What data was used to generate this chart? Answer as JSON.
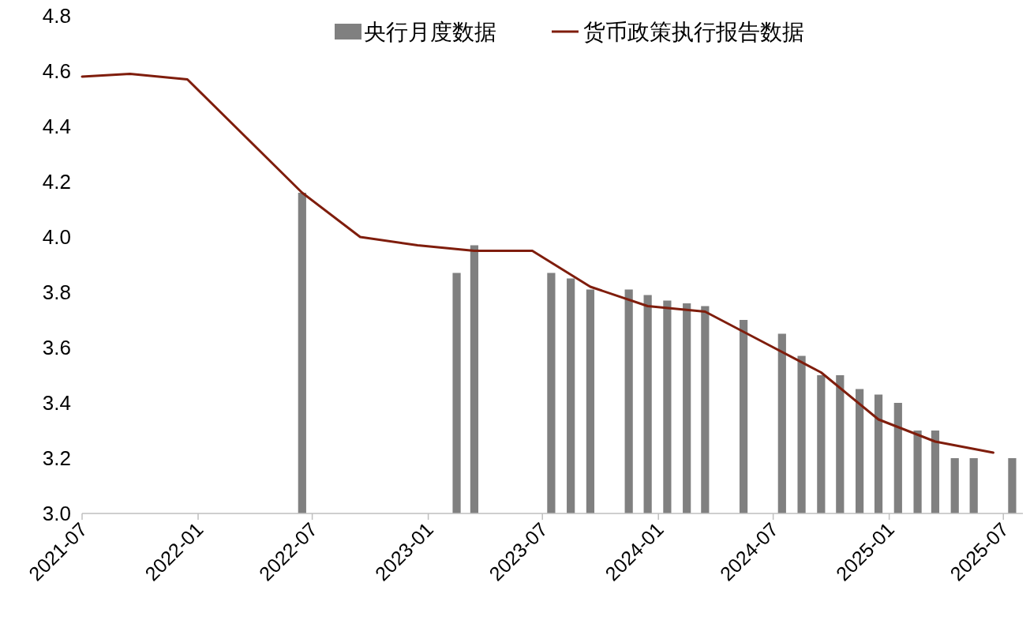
{
  "chart_data": {
    "type": "bar",
    "xlim": [
      "2021-07",
      "2025-08"
    ],
    "xticks": [
      "2021-07",
      "2022-01",
      "2022-07",
      "2023-01",
      "2023-07",
      "2024-01",
      "2024-07",
      "2025-01",
      "2025-07"
    ],
    "ylim": [
      3.0,
      4.8
    ],
    "yticks": [
      {
        "value": 3.0,
        "label": "3.0"
      },
      {
        "value": 3.2,
        "label": "3.2"
      },
      {
        "value": 3.4,
        "label": "3.4"
      },
      {
        "value": 3.6,
        "label": "3.6"
      },
      {
        "value": 3.8,
        "label": "3.8"
      },
      {
        "value": 4.0,
        "label": "4.0"
      },
      {
        "value": 4.2,
        "label": "4.2"
      },
      {
        "value": 4.4,
        "label": "4.4"
      },
      {
        "value": 4.6,
        "label": "4.6"
      },
      {
        "value": 4.8,
        "label": "4.8"
      }
    ],
    "grid": false,
    "legend": "top",
    "series": [
      {
        "name": "央行月度数据",
        "color": "#808080",
        "x": [
          "2022-06-15",
          "2023-02-15",
          "2023-03-15",
          "2023-07-15",
          "2023-08-15",
          "2023-09-15",
          "2023-11-15",
          "2023-12-15",
          "2024-01-15",
          "2024-02-15",
          "2024-03-15",
          "2024-05-15",
          "2024-07-15",
          "2024-08-15",
          "2024-09-15",
          "2024-10-15",
          "2024-11-15",
          "2024-12-15",
          "2025-01-15",
          "2025-02-15",
          "2025-03-15",
          "2025-04-15",
          "2025-05-15",
          "2025-07-15"
        ],
        "values": [
          4.16,
          3.87,
          3.97,
          3.87,
          3.85,
          3.81,
          3.81,
          3.79,
          3.77,
          3.76,
          3.75,
          3.7,
          3.65,
          3.57,
          3.5,
          3.5,
          3.45,
          3.43,
          3.4,
          3.3,
          3.3,
          3.2,
          3.2,
          3.2
        ]
      },
      {
        "name": "货币政策执行报告数据",
        "type": "line",
        "color": "#7f1d0c",
        "x": [
          "2021-07-01",
          "2021-09-15",
          "2021-12-15",
          "2022-06-15",
          "2022-09-15",
          "2022-12-15",
          "2023-03-15",
          "2023-06-15",
          "2023-09-15",
          "2023-12-15",
          "2024-03-15",
          "2024-06-15",
          "2024-09-15",
          "2024-12-15",
          "2025-03-15",
          "2025-06-15"
        ],
        "values": [
          4.58,
          4.59,
          4.57,
          4.16,
          4.0,
          3.97,
          3.95,
          3.95,
          3.82,
          3.75,
          3.73,
          3.62,
          3.51,
          3.34,
          3.26,
          3.22
        ]
      }
    ]
  }
}
